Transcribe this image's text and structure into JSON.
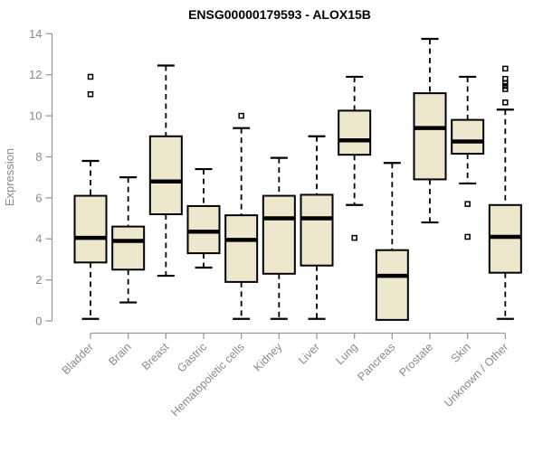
{
  "colors": {
    "box_fill": "#EDE8CD",
    "box_stroke": "#000000",
    "median_stroke": "#000000",
    "whisker_stroke": "#000000",
    "outlier_stroke": "#000000",
    "axis_line": "#9b9b9b",
    "axis_text": "#8a8a8a",
    "title_text": "#000000",
    "background": "#ffffff"
  },
  "chart_data": {
    "type": "boxplot",
    "title": "ENSG00000179593 - ALOX15B",
    "xlabel": "",
    "ylabel": "Expression",
    "ylim": [
      0,
      14
    ],
    "yticks": [
      0,
      2,
      4,
      6,
      8,
      10,
      12,
      14
    ],
    "grid": false,
    "categories": [
      "Bladder",
      "Brain",
      "Breast",
      "Gastric",
      "Hematopoietic cells",
      "Kidney",
      "Liver",
      "Lung",
      "Pancreas",
      "Prostate",
      "Skin",
      "Unknown / Other"
    ],
    "series": [
      {
        "label": "Bladder",
        "whisker_low": 0.1,
        "q1": 2.85,
        "median": 4.05,
        "q3": 6.1,
        "whisker_high": 7.8,
        "outliers": [
          11.9,
          11.05
        ]
      },
      {
        "label": "Brain",
        "whisker_low": 0.9,
        "q1": 2.5,
        "median": 3.9,
        "q3": 4.6,
        "whisker_high": 7.0,
        "outliers": []
      },
      {
        "label": "Breast",
        "whisker_low": 2.2,
        "q1": 5.2,
        "median": 6.8,
        "q3": 9.0,
        "whisker_high": 12.45,
        "outliers": []
      },
      {
        "label": "Gastric",
        "whisker_low": 2.6,
        "q1": 3.3,
        "median": 4.35,
        "q3": 5.6,
        "whisker_high": 7.4,
        "outliers": []
      },
      {
        "label": "Hematopoietic cells",
        "whisker_low": 0.1,
        "q1": 1.9,
        "median": 3.95,
        "q3": 5.15,
        "whisker_high": 9.4,
        "outliers": [
          10.0
        ]
      },
      {
        "label": "Kidney",
        "whisker_low": 0.1,
        "q1": 2.3,
        "median": 5.0,
        "q3": 6.1,
        "whisker_high": 7.95,
        "outliers": []
      },
      {
        "label": "Liver",
        "whisker_low": 0.1,
        "q1": 2.7,
        "median": 5.0,
        "q3": 6.15,
        "whisker_high": 9.0,
        "outliers": []
      },
      {
        "label": "Lung",
        "whisker_low": 5.65,
        "q1": 8.1,
        "median": 8.8,
        "q3": 10.25,
        "whisker_high": 11.9,
        "outliers": [
          4.05
        ]
      },
      {
        "label": "Pancreas",
        "whisker_low": 0.05,
        "q1": 0.05,
        "median": 2.2,
        "q3": 3.45,
        "whisker_high": 7.7,
        "outliers": []
      },
      {
        "label": "Prostate",
        "whisker_low": 4.8,
        "q1": 6.9,
        "median": 9.4,
        "q3": 11.1,
        "whisker_high": 13.75,
        "outliers": []
      },
      {
        "label": "Skin",
        "whisker_low": 6.7,
        "q1": 8.15,
        "median": 8.75,
        "q3": 9.8,
        "whisker_high": 11.9,
        "outliers": [
          5.7,
          4.1
        ]
      },
      {
        "label": "Unknown / Other",
        "whisker_low": 0.1,
        "q1": 2.35,
        "median": 4.1,
        "q3": 5.65,
        "whisker_high": 10.3,
        "outliers": [
          12.3,
          11.8,
          11.6,
          11.45,
          11.3,
          10.65
        ]
      }
    ]
  }
}
